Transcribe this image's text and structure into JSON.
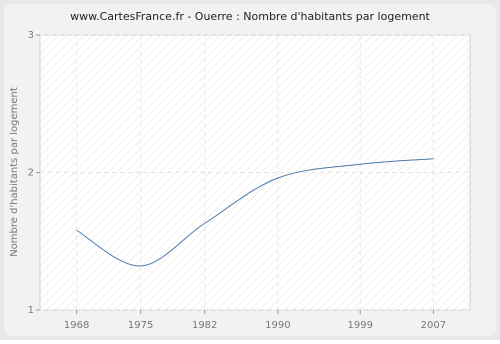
{
  "chart_data": {
    "type": "line",
    "title": "www.CartesFrance.fr - Ouerre : Nombre d'habitants par logement",
    "y_label": "Nombre d'habitants par logement",
    "x": [
      1968,
      1975,
      1982,
      1990,
      1999,
      2007
    ],
    "series": [
      {
        "name": "Ouerre",
        "color": "#4a78a8",
        "values": [
          1.58,
          1.32,
          1.63,
          1.96,
          2.06,
          2.1
        ]
      }
    ],
    "xlim": [
      1964,
      2011
    ],
    "xticks": [
      1968,
      1975,
      1982,
      1990,
      1999,
      2007
    ],
    "ylim": [
      1,
      3
    ],
    "yticks": [
      1,
      2,
      3
    ],
    "grid": true
  }
}
